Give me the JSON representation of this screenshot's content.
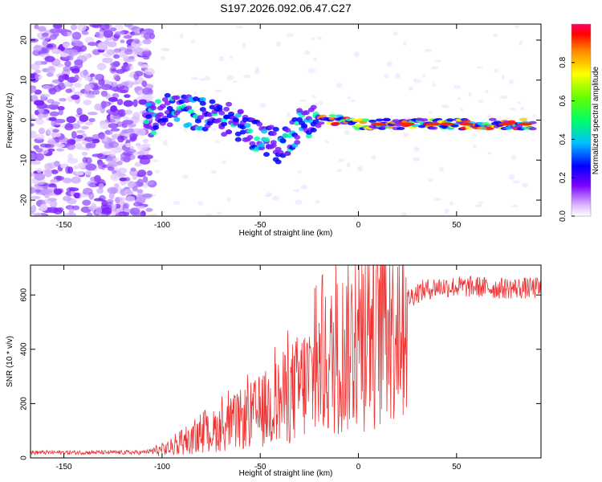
{
  "title": "S197.2026.092.06.47.C27",
  "chart_data": [
    {
      "type": "heatmap",
      "name": "spectrogram",
      "xlabel": "Height of straight line (km)",
      "ylabel": "Frequency (Hz)",
      "xlim": [
        -167,
        93
      ],
      "ylim": [
        -24,
        24
      ],
      "xticks": [
        -150,
        -100,
        -50,
        0,
        50
      ],
      "yticks": [
        -20,
        -10,
        0,
        10,
        20
      ],
      "colorbar": {
        "label": "Normalized spectral amplitude",
        "range": [
          0,
          1
        ],
        "ticks": [
          0.0,
          0.2,
          0.4,
          0.6,
          0.8
        ]
      },
      "ridge": {
        "x": [
          -105,
          -95,
          -85,
          -75,
          -65,
          -55,
          -45,
          -40,
          -35,
          -30,
          -25,
          -20,
          -10,
          0,
          10,
          20,
          30,
          40,
          50,
          60,
          70,
          80,
          90
        ],
        "freq": [
          0,
          3,
          2,
          1,
          0,
          -3,
          -5,
          -7,
          -4,
          -1,
          0,
          0,
          0,
          -1,
          -1,
          -1,
          -1,
          -1,
          -1,
          -1,
          -1,
          -1,
          -1
        ]
      }
    },
    {
      "type": "line",
      "name": "snr",
      "xlabel": "Height of straight line (km)",
      "ylabel": "SNR (10 * v/v)",
      "xlim": [
        -167,
        93
      ],
      "ylim": [
        0,
        710
      ],
      "xticks": [
        -150,
        -100,
        -50,
        0,
        50
      ],
      "yticks": [
        0,
        200,
        400,
        600
      ],
      "series": [
        {
          "name": "SNR",
          "color": "#ee3333",
          "envelope_x": [
            -167,
            -110,
            -100,
            -90,
            -80,
            -70,
            -60,
            -50,
            -40,
            -30,
            -20,
            -10,
            0,
            10,
            20,
            30,
            40,
            50,
            60,
            70,
            80,
            93
          ],
          "envelope_y": [
            20,
            20,
            30,
            50,
            80,
            110,
            140,
            170,
            210,
            260,
            320,
            380,
            440,
            500,
            560,
            610,
            630,
            630,
            630,
            625,
            625,
            625
          ]
        }
      ]
    }
  ]
}
